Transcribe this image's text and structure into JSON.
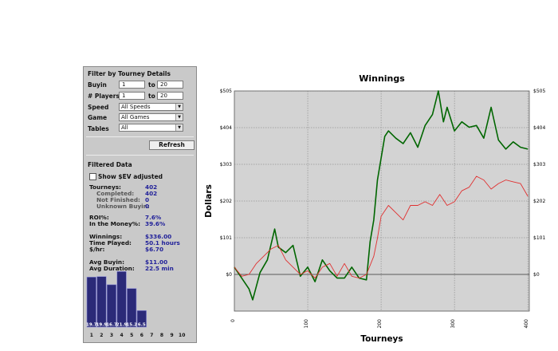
{
  "filter": {
    "title": "Filter by Tourney Details",
    "buyin": {
      "label": "Buyin",
      "from": "1",
      "to_word": "to",
      "to": "20"
    },
    "players": {
      "label": "# Players",
      "from": "1",
      "to_word": "to",
      "to": "20"
    },
    "speed": {
      "label": "Speed",
      "value": "All Speeds"
    },
    "game": {
      "label": "Game",
      "value": "All Games"
    },
    "tables": {
      "label": "Tables",
      "value": "All"
    },
    "refresh_label": "Refresh"
  },
  "filtered": {
    "title": "Filtered Data",
    "show_ev_label": "Show $EV adjusted",
    "tourneys": {
      "label": "Tourneys:",
      "value": "402"
    },
    "completed": {
      "label": "Completed:",
      "value": "402"
    },
    "not_finished": {
      "label": "Not Finished:",
      "value": "0"
    },
    "unknown_buyin": {
      "label": "Unknown Buyin:",
      "value": "0"
    },
    "roi": {
      "label": "ROI%:",
      "value": "7.6%"
    },
    "itm": {
      "label": "In the Money%:",
      "value": "39.6%"
    },
    "winnings": {
      "label": "Winnings:",
      "value": "$336.00"
    },
    "time_played": {
      "label": "Time Played:",
      "value": "50.1 hours"
    },
    "per_hour": {
      "label": "$/hr:",
      "value": "$6.70"
    },
    "avg_buyin": {
      "label": "Avg Buyin:",
      "value": "$11.00"
    },
    "avg_duration": {
      "label": "Avg Duration:",
      "value": "22.5 min"
    }
  },
  "histogram": {
    "categories": [
      "1",
      "2",
      "3",
      "4",
      "5",
      "6",
      "7",
      "8",
      "9",
      "10"
    ],
    "values": [
      19.7,
      19.9,
      16.7,
      21.9,
      15.2,
      6.5,
      0,
      0,
      0,
      0
    ],
    "labels": [
      "19.7",
      "19.9",
      "16.7",
      "21.9",
      "15.2",
      "6.5",
      "",
      "",
      "",
      ""
    ],
    "bar_color": "#2b2a78"
  },
  "chart_data": {
    "type": "line",
    "title": "Winnings",
    "xlabel": "Tourneys",
    "ylabel": "Dollars",
    "xlim": [
      0,
      402
    ],
    "ylim": [
      -101,
      505
    ],
    "x_ticks": [
      "0",
      "100",
      "200",
      "300",
      "400"
    ],
    "y_ticks": [
      "$0",
      "$101",
      "$202",
      "$303",
      "$404",
      "$505"
    ],
    "grid": true,
    "series": [
      {
        "color": "#006600",
        "x": [
          0,
          10,
          20,
          25,
          35,
          45,
          55,
          60,
          70,
          80,
          90,
          100,
          110,
          120,
          130,
          140,
          150,
          160,
          170,
          180,
          185,
          190,
          195,
          200,
          205,
          210,
          220,
          230,
          240,
          250,
          260,
          270,
          278,
          285,
          290,
          300,
          310,
          320,
          330,
          340,
          350,
          360,
          370,
          380,
          390,
          400
        ],
        "y": [
          20,
          -10,
          -40,
          -70,
          5,
          40,
          125,
          75,
          60,
          80,
          -5,
          20,
          -20,
          40,
          10,
          -10,
          -10,
          20,
          -10,
          -15,
          90,
          150,
          260,
          320,
          380,
          395,
          375,
          360,
          390,
          350,
          410,
          440,
          505,
          420,
          460,
          395,
          420,
          405,
          410,
          375,
          460,
          370,
          345,
          365,
          350,
          345
        ]
      },
      {
        "color": "#e03030",
        "x": [
          0,
          10,
          20,
          30,
          40,
          50,
          60,
          70,
          80,
          90,
          100,
          110,
          120,
          130,
          140,
          150,
          160,
          170,
          180,
          190,
          195,
          200,
          210,
          220,
          230,
          240,
          250,
          260,
          270,
          280,
          290,
          300,
          310,
          320,
          330,
          340,
          350,
          360,
          370,
          380,
          390,
          400
        ],
        "y": [
          20,
          -5,
          0,
          30,
          50,
          70,
          80,
          40,
          20,
          0,
          10,
          -10,
          20,
          30,
          -5,
          30,
          -5,
          -10,
          0,
          50,
          100,
          160,
          190,
          170,
          150,
          190,
          190,
          200,
          190,
          220,
          190,
          200,
          230,
          240,
          270,
          260,
          235,
          250,
          260,
          255,
          250,
          215
        ]
      }
    ]
  }
}
